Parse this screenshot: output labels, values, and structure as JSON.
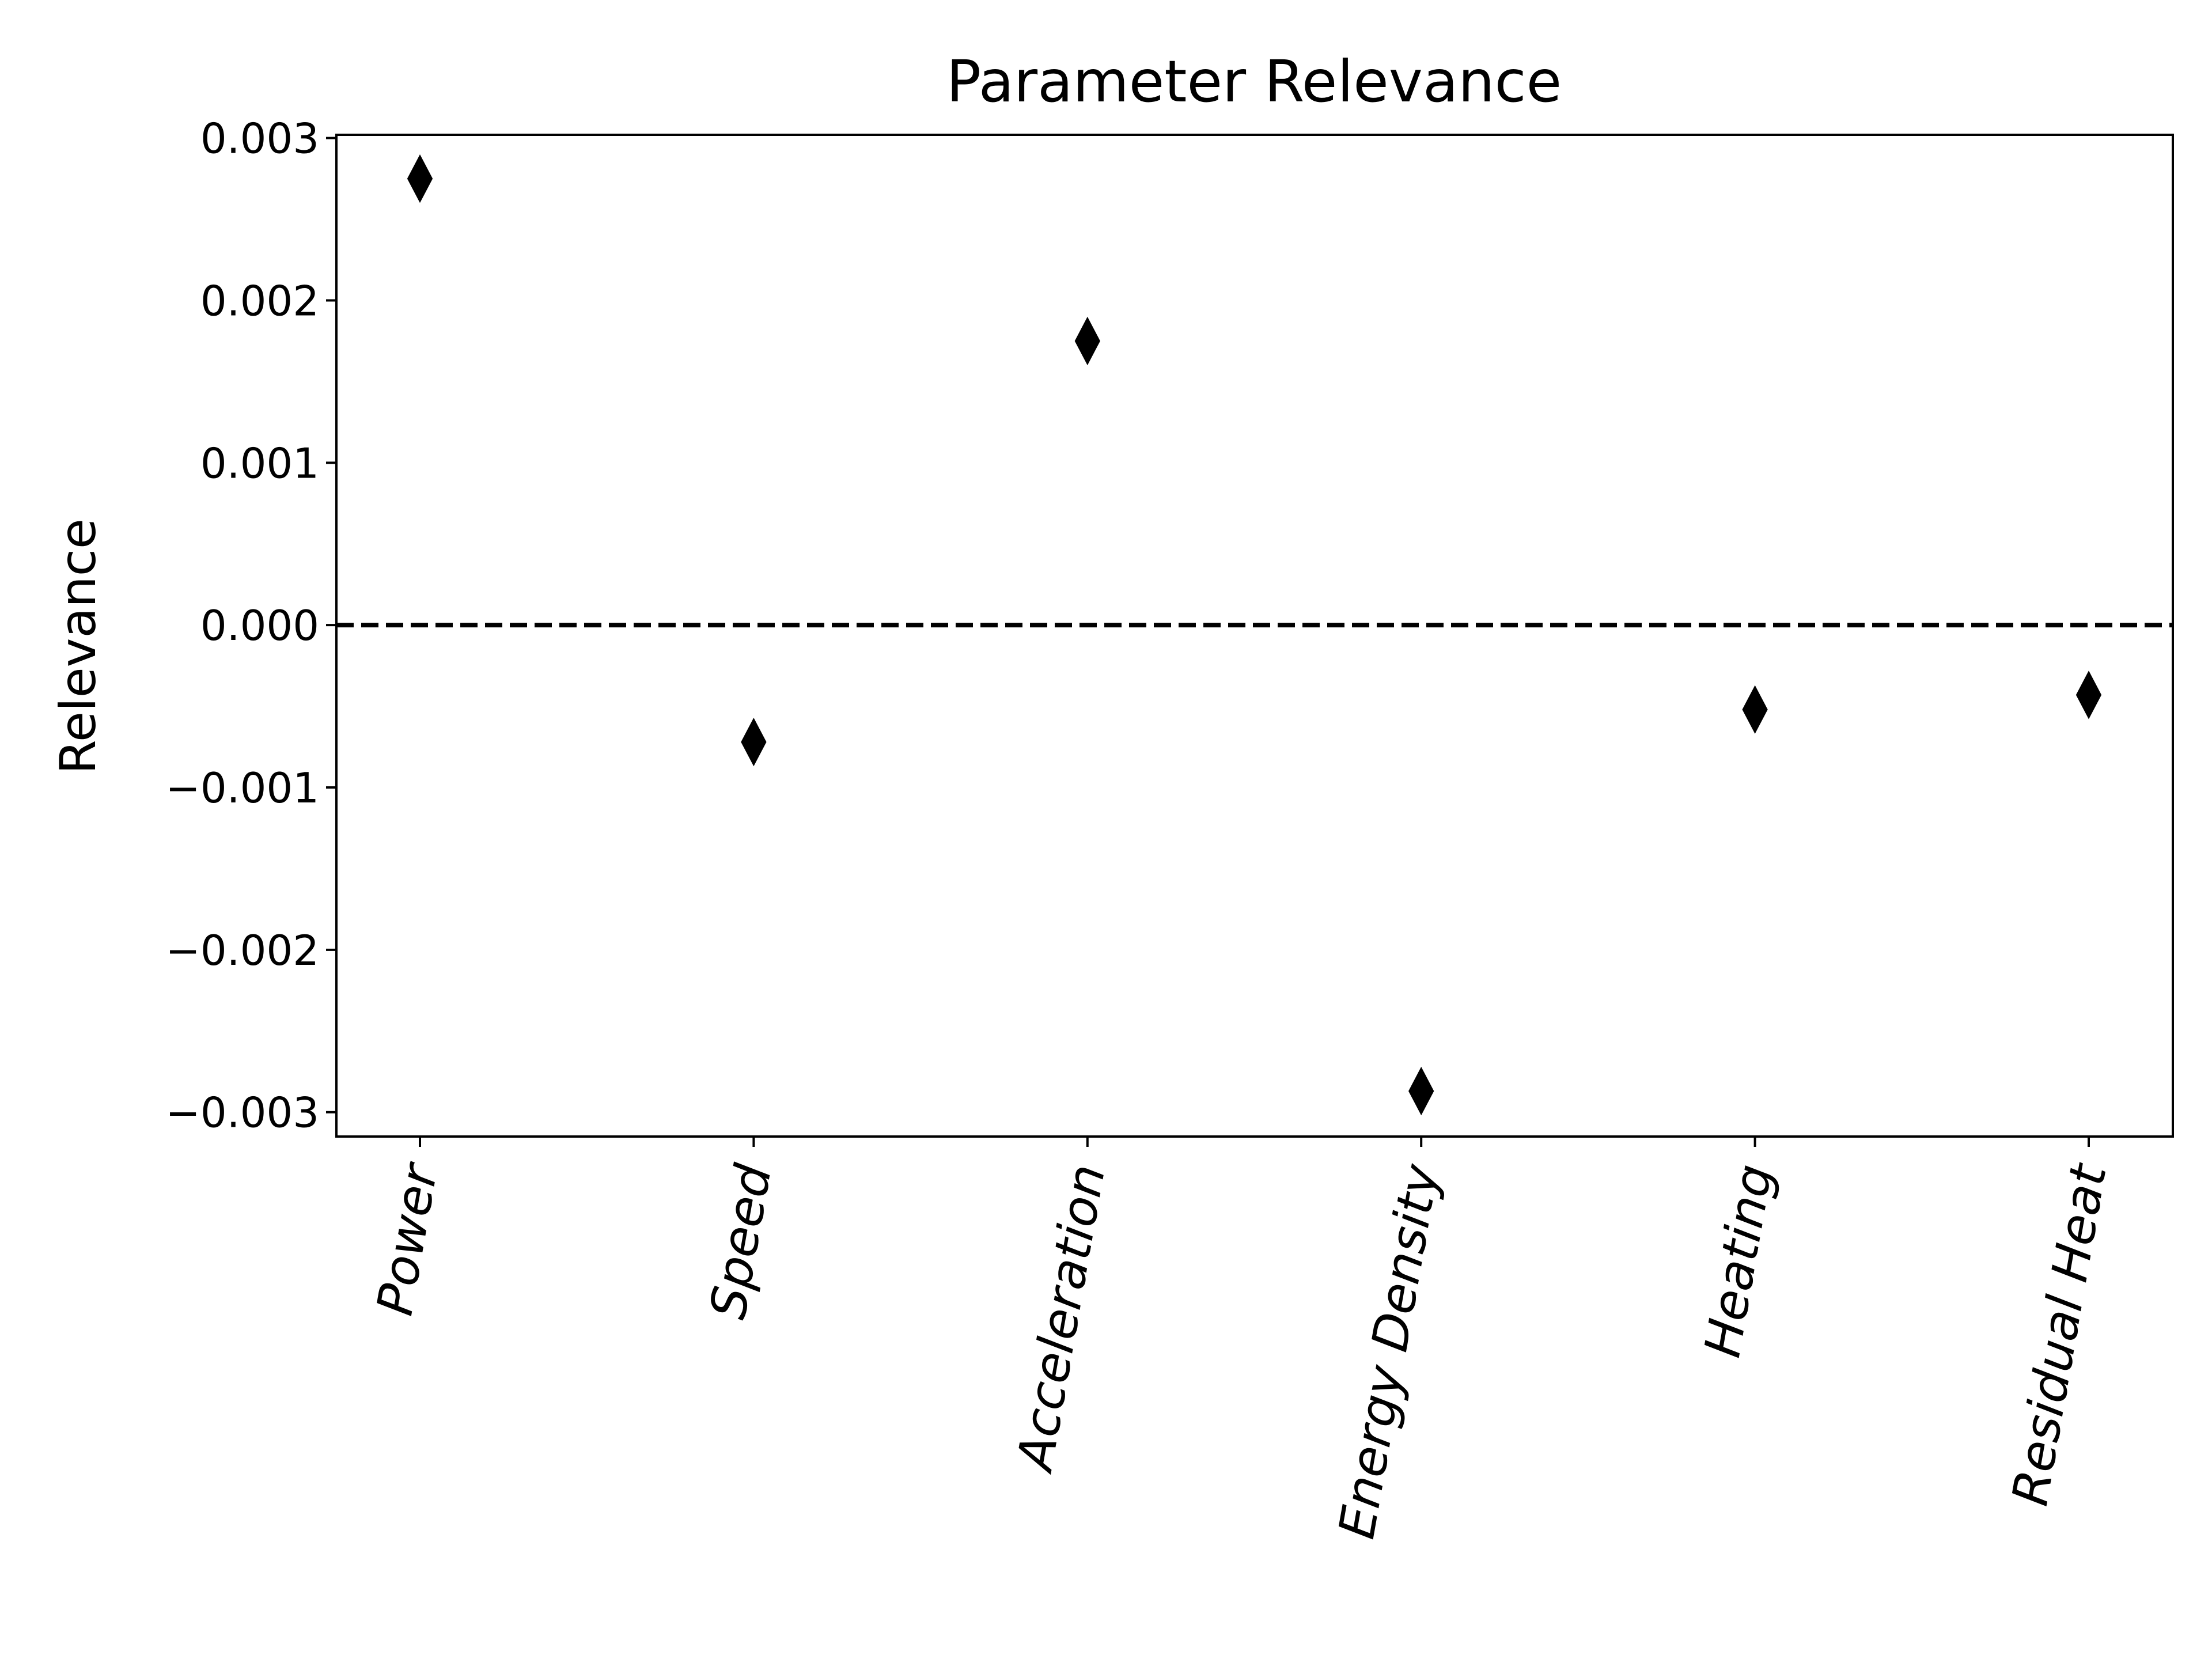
{
  "chart_data": {
    "type": "scatter",
    "title": "Parameter Relevance",
    "xlabel": "",
    "ylabel": "Relevance",
    "categories": [
      "Power",
      "Speed",
      "Acceleration",
      "Energy Density",
      "Heating",
      "Residual Heat"
    ],
    "values": [
      0.00275,
      -0.00072,
      0.00175,
      -0.00287,
      -0.00052,
      -0.00043
    ],
    "ylim": [
      -0.00315,
      0.00302
    ],
    "yticks": [
      0.003,
      0.002,
      0.001,
      0.0,
      -0.001,
      -0.002,
      -0.003
    ],
    "ytick_labels": [
      "0.003",
      "0.002",
      "0.001",
      "0.000",
      "−0.001",
      "−0.002",
      "−0.003"
    ],
    "marker": "thin-diamond",
    "marker_color": "#000000",
    "reference_line": {
      "y": 0,
      "style": "dashed",
      "color": "#000000"
    },
    "grid": false,
    "legend": null
  }
}
